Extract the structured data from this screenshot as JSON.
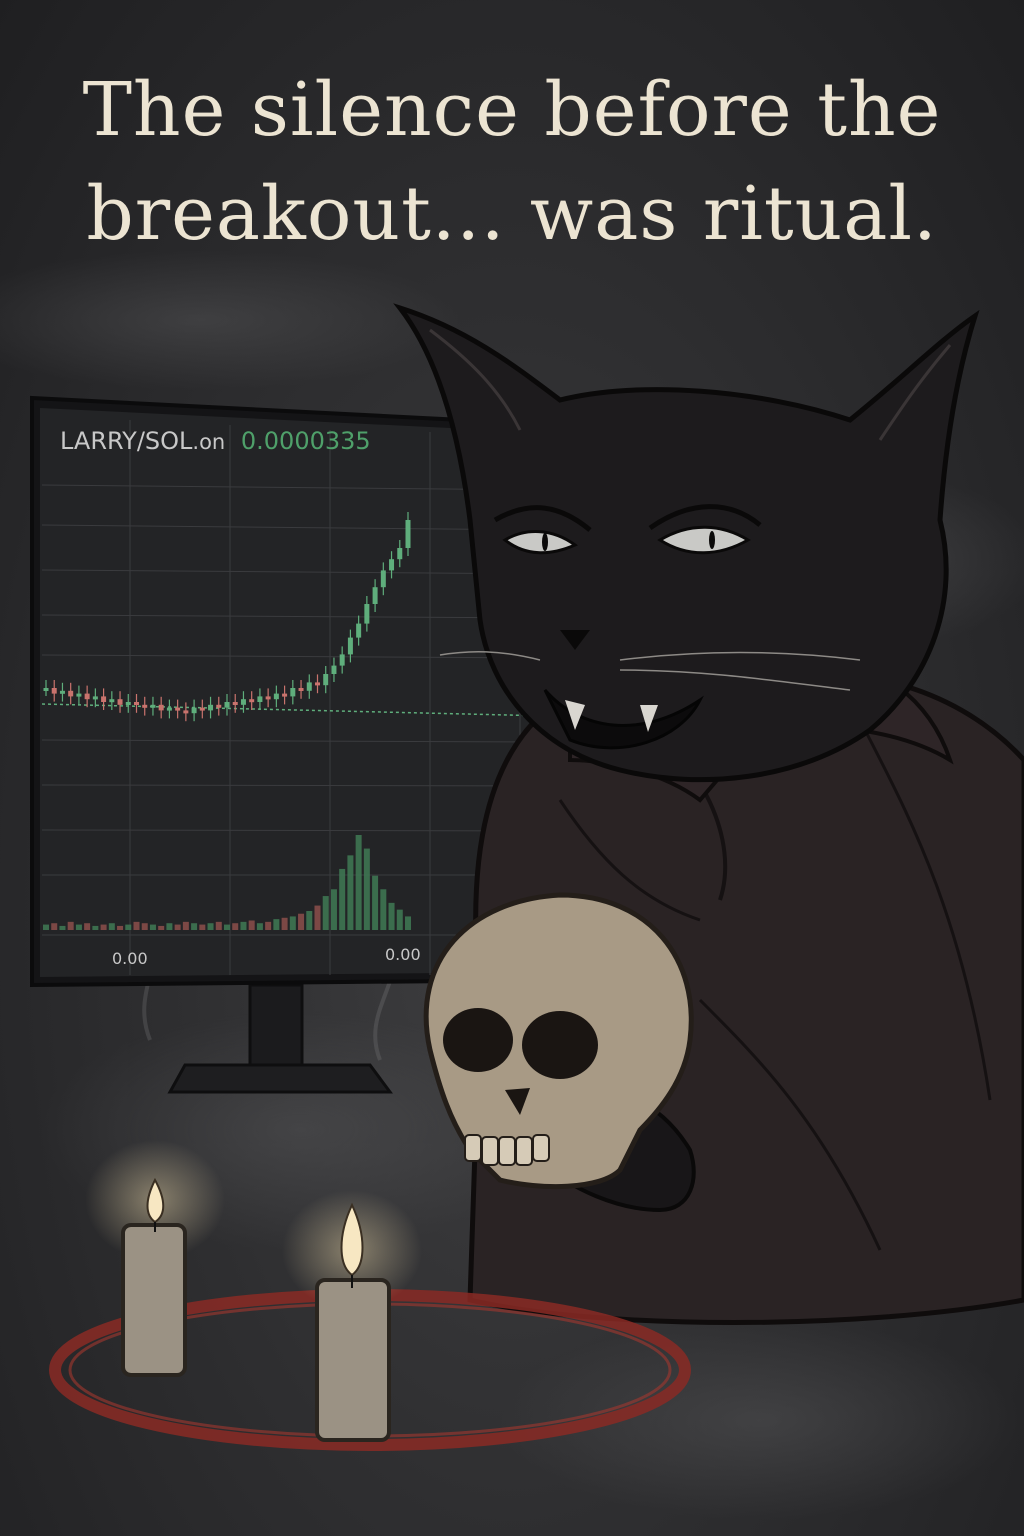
{
  "poster": {
    "title_line1": "The silence before the",
    "title_line2": "breakout... was ritual."
  },
  "chart": {
    "pair": "LARRY/SOL",
    "suffix": ".on",
    "price": "0.0000335",
    "x_label_left": "0.00",
    "x_label_right": "0.00"
  },
  "colors": {
    "up": "#5fae7c",
    "down": "#c9736d",
    "price": "#4fa06a",
    "candle_ring": "#8a2a24"
  },
  "chart_data": {
    "type": "line",
    "title": "LARRY/SOL.on 0.0000335",
    "xlabel": "",
    "ylabel": "",
    "note": "relative candlestick close levels (0 = low, 100 = high) as depicted",
    "closes": [
      40,
      38,
      39,
      37,
      38,
      36,
      37,
      35,
      36,
      34,
      35,
      34,
      33,
      34,
      32,
      33,
      32,
      31,
      33,
      32,
      34,
      33,
      35,
      34,
      36,
      35,
      37,
      36,
      38,
      37,
      40,
      39,
      42,
      41,
      45,
      48,
      52,
      58,
      63,
      70,
      76,
      82,
      86,
      90,
      100
    ],
    "volumes": [
      4,
      5,
      3,
      6,
      4,
      5,
      3,
      4,
      5,
      3,
      4,
      6,
      5,
      4,
      3,
      5,
      4,
      6,
      5,
      4,
      5,
      6,
      4,
      5,
      6,
      7,
      5,
      6,
      8,
      9,
      10,
      12,
      14,
      18,
      25,
      30,
      45,
      55,
      70,
      60,
      40,
      30,
      20,
      15,
      10
    ]
  }
}
